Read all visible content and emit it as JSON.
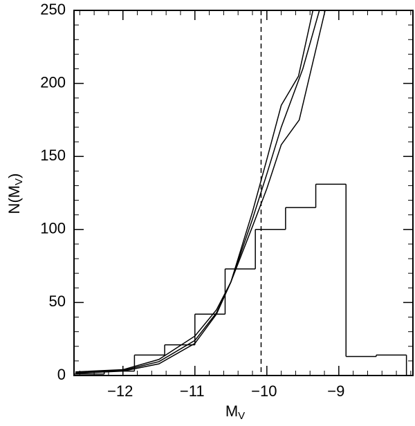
{
  "chart_data": {
    "type": "histogram",
    "xlabel": {
      "main": "M",
      "sub": "V"
    },
    "ylabel": {
      "main": "N(M",
      "sub": "V",
      "close": ")"
    },
    "bins": [
      -12.68,
      -12.26,
      -11.84,
      -11.42,
      -11.0,
      -10.58,
      -10.16,
      -9.74,
      -9.32,
      -8.9,
      -8.48,
      -8.06
    ],
    "counts": [
      1,
      3,
      14,
      21,
      42,
      73,
      100,
      115,
      131,
      13,
      14
    ],
    "color": "#000000",
    "lines": [
      {
        "x": [
          -12.66,
          -12.0,
          -11.5,
          -11.0,
          -10.7,
          -10.5,
          -10.2,
          -10.0,
          -9.8,
          -9.56,
          -9.36
        ],
        "y": [
          1.5,
          3,
          8,
          22,
          42,
          64,
          112,
          148,
          185,
          205,
          250
        ]
      },
      {
        "x": [
          -12.66,
          -12.0,
          -11.5,
          -11.0,
          -10.7,
          -10.5,
          -10.2,
          -10.0,
          -9.8,
          -9.5,
          -9.27
        ],
        "y": [
          2,
          3.5,
          9.5,
          24,
          43,
          64,
          107,
          138,
          170,
          210,
          250
        ]
      },
      {
        "x": [
          -12.66,
          -12.0,
          -11.5,
          -11.0,
          -10.7,
          -10.5,
          -10.2,
          -10.0,
          -9.8,
          -9.55,
          -9.19
        ],
        "y": [
          2.5,
          4,
          11,
          27,
          45,
          64,
          102,
          128,
          158,
          175,
          250
        ]
      }
    ],
    "vline": -10.08,
    "xlim": [
      -12.68,
      -7.97
    ],
    "ylim": [
      0,
      250
    ],
    "xticks": [
      {
        "value": -12,
        "label": "−12"
      },
      {
        "value": -11,
        "label": "−11"
      },
      {
        "value": -10,
        "label": "−10"
      },
      {
        "value": -9,
        "label": "−9"
      }
    ],
    "yticks": [
      0,
      50,
      100,
      150,
      200,
      250
    ],
    "xminorticks": [
      -12.6,
      -12.4,
      -12.2,
      -11.8,
      -11.6,
      -11.4,
      -11.2,
      -10.8,
      -10.6,
      -10.4,
      -10.2,
      -9.8,
      -9.6,
      -9.4,
      -9.2,
      -8.8,
      -8.6,
      -8.4,
      -8.2,
      -8.0
    ],
    "yminorticks": [
      10,
      20,
      30,
      40,
      60,
      70,
      80,
      90,
      110,
      120,
      130,
      140,
      160,
      170,
      180,
      190,
      210,
      220,
      230,
      240
    ]
  }
}
